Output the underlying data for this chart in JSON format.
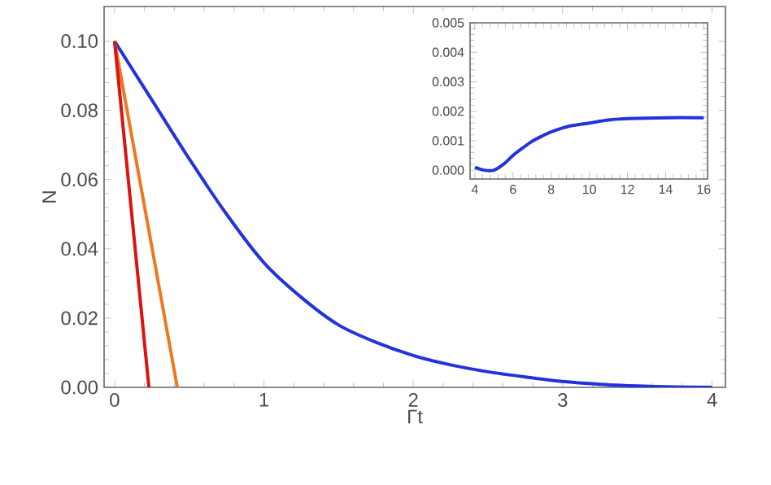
{
  "chart_data": [
    {
      "type": "line",
      "xlabel": "Γt",
      "ylabel": "N",
      "xlim": [
        -0.07,
        4.09
      ],
      "ylim": [
        0,
        0.11
      ],
      "xticks": [
        0,
        1,
        2,
        3,
        4
      ],
      "yticks": [
        {
          "value": 0,
          "label": "0.00"
        },
        {
          "value": 0.02,
          "label": "0.02"
        },
        {
          "value": 0.04,
          "label": "0.04"
        },
        {
          "value": 0.06,
          "label": "0.06"
        },
        {
          "value": 0.08,
          "label": "0.08"
        },
        {
          "value": 0.1,
          "label": "0.10"
        }
      ],
      "grid": false,
      "series": [
        {
          "color": "#2233dd",
          "x": [
            0,
            0.25,
            0.5,
            0.75,
            1,
            1.25,
            1.5,
            1.75,
            2,
            2.25,
            2.5,
            2.75,
            3,
            3.25,
            3.5,
            3.75,
            4
          ],
          "values": [
            0.1,
            0.083,
            0.066,
            0.05,
            0.036,
            0.026,
            0.018,
            0.013,
            0.0092,
            0.0065,
            0.0045,
            0.003,
            0.0017,
            0.0009,
            0.0004,
            0.0001,
            0
          ]
        },
        {
          "color": "#ee7722",
          "x": [
            0,
            0.42
          ],
          "values": [
            0.1,
            0
          ]
        },
        {
          "color": "#dd1111",
          "x": [
            0,
            0.23
          ],
          "values": [
            0.1,
            0
          ]
        }
      ]
    },
    {
      "type": "line",
      "xlim": [
        3.75,
        16.2
      ],
      "ylim": [
        -0.0003,
        0.005
      ],
      "xticks": [
        4,
        6,
        8,
        10,
        12,
        14,
        16
      ],
      "yticks": [
        {
          "value": 0,
          "label": "0.000"
        },
        {
          "value": 0.001,
          "label": "0.001"
        },
        {
          "value": 0.002,
          "label": "0.002"
        },
        {
          "value": 0.003,
          "label": "0.003"
        },
        {
          "value": 0.004,
          "label": "0.004"
        },
        {
          "value": 0.005,
          "label": "0.005"
        }
      ],
      "grid": false,
      "series": [
        {
          "color": "#2233dd",
          "x": [
            4,
            4.5,
            5,
            5.5,
            6,
            6.5,
            7,
            7.5,
            8,
            9,
            10,
            11,
            12,
            14,
            16
          ],
          "values": [
            0.0001,
            0,
            0,
            0.0002,
            0.0005,
            0.00075,
            0.00098,
            0.00115,
            0.0013,
            0.0015,
            0.0016,
            0.0017,
            0.00175,
            0.00178,
            0.00178
          ]
        }
      ]
    }
  ]
}
